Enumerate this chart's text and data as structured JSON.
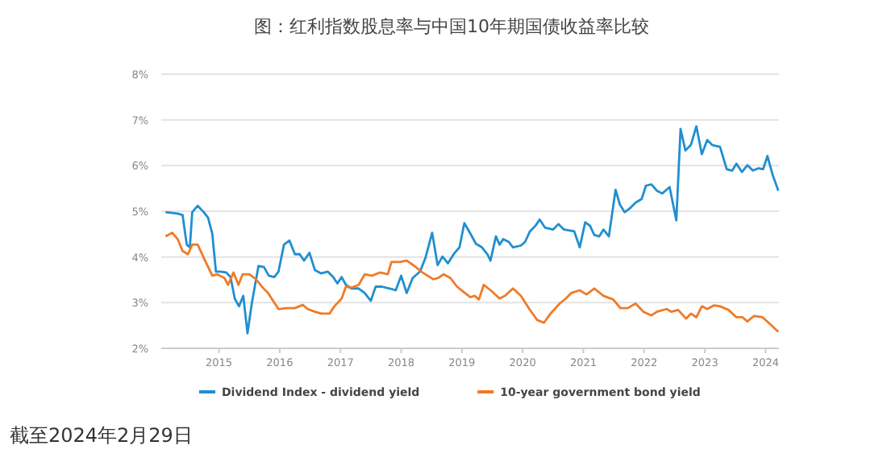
{
  "chart_data": {
    "type": "line",
    "title": "图：红利指数股息率与中国10年期国债收益率比较",
    "annotations": [
      "截至2024年2月29日"
    ],
    "xlim": [
      2014.05,
      2024.22
    ],
    "xticks": [
      2015,
      2016,
      2017,
      2018,
      2019,
      2020,
      2021,
      2022,
      2023,
      2024
    ],
    "ylim": [
      2,
      8
    ],
    "yticks": [
      {
        "value": 2,
        "label": "2%"
      },
      {
        "value": 3,
        "label": "3%"
      },
      {
        "value": 4,
        "label": "4%"
      },
      {
        "value": 5,
        "label": "5%"
      },
      {
        "value": 6,
        "label": "6%"
      },
      {
        "value": 7,
        "label": "7%"
      },
      {
        "value": 8,
        "label": "8%"
      }
    ],
    "grid": "y",
    "legend": "bottom",
    "line_style": "solid",
    "marker": "none",
    "series": [
      {
        "name": "Dividend Index - dividend yield",
        "color": "#1f8fd0",
        "x": [
          2014.12,
          2014.32,
          2014.4,
          2014.47,
          2014.52,
          2014.56,
          2014.65,
          2014.75,
          2014.82,
          2014.89,
          2014.95,
          2015.02,
          2015.12,
          2015.19,
          2015.26,
          2015.33,
          2015.4,
          2015.47,
          2015.54,
          2015.65,
          2015.74,
          2015.82,
          2015.91,
          2015.98,
          2016.07,
          2016.16,
          2016.25,
          2016.33,
          2016.4,
          2016.49,
          2016.58,
          2016.68,
          2016.79,
          2016.88,
          2016.95,
          2017.02,
          2017.09,
          2017.18,
          2017.3,
          2017.4,
          2017.5,
          2017.58,
          2017.68,
          2017.81,
          2017.91,
          2018.0,
          2018.09,
          2018.19,
          2018.31,
          2018.4,
          2018.51,
          2018.6,
          2018.68,
          2018.77,
          2018.88,
          2018.96,
          2019.04,
          2019.14,
          2019.23,
          2019.33,
          2019.42,
          2019.47,
          2019.56,
          2019.62,
          2019.68,
          2019.77,
          2019.84,
          2019.97,
          2020.04,
          2020.12,
          2020.21,
          2020.28,
          2020.37,
          2020.5,
          2020.59,
          2020.68,
          2020.85,
          2020.94,
          2021.03,
          2021.11,
          2021.18,
          2021.26,
          2021.33,
          2021.42,
          2021.53,
          2021.6,
          2021.68,
          2021.77,
          2021.86,
          2021.96,
          2022.03,
          2022.12,
          2022.21,
          2022.3,
          2022.42,
          2022.53,
          2022.6,
          2022.68,
          2022.77,
          2022.86,
          2022.95,
          2023.04,
          2023.12,
          2023.25,
          2023.36,
          2023.45,
          2023.52,
          2023.61,
          2023.7,
          2023.79,
          2023.88,
          2023.96,
          2024.03,
          2024.12,
          2024.21
        ],
        "values": [
          4.98,
          4.95,
          4.92,
          4.27,
          4.21,
          4.98,
          5.12,
          4.98,
          4.86,
          4.51,
          3.68,
          3.68,
          3.66,
          3.56,
          3.09,
          2.92,
          3.15,
          2.33,
          2.98,
          3.8,
          3.78,
          3.59,
          3.56,
          3.68,
          4.27,
          4.36,
          4.06,
          4.06,
          3.92,
          4.09,
          3.71,
          3.64,
          3.68,
          3.56,
          3.42,
          3.56,
          3.39,
          3.31,
          3.31,
          3.21,
          3.04,
          3.35,
          3.35,
          3.31,
          3.27,
          3.59,
          3.21,
          3.54,
          3.68,
          3.98,
          4.53,
          3.82,
          4.01,
          3.86,
          4.09,
          4.21,
          4.74,
          4.51,
          4.29,
          4.21,
          4.06,
          3.92,
          4.45,
          4.27,
          4.39,
          4.33,
          4.21,
          4.25,
          4.33,
          4.56,
          4.68,
          4.82,
          4.64,
          4.6,
          4.72,
          4.6,
          4.56,
          4.21,
          4.76,
          4.68,
          4.48,
          4.45,
          4.6,
          4.45,
          5.47,
          5.15,
          4.98,
          5.07,
          5.19,
          5.27,
          5.56,
          5.59,
          5.45,
          5.39,
          5.53,
          4.8,
          6.8,
          6.33,
          6.45,
          6.86,
          6.25,
          6.56,
          6.45,
          6.41,
          5.92,
          5.89,
          6.04,
          5.86,
          6.01,
          5.89,
          5.94,
          5.92,
          6.21,
          5.78,
          5.45
        ]
      },
      {
        "name": "10-year government bond yield",
        "color": "#f07a26",
        "x": [
          2014.12,
          2014.23,
          2014.32,
          2014.4,
          2014.49,
          2014.56,
          2014.65,
          2014.75,
          2014.89,
          2014.97,
          2015.09,
          2015.15,
          2015.24,
          2015.32,
          2015.39,
          2015.5,
          2015.61,
          2015.72,
          2015.81,
          2015.89,
          2015.98,
          2016.11,
          2016.25,
          2016.38,
          2016.46,
          2016.58,
          2016.68,
          2016.82,
          2016.9,
          2017.02,
          2017.09,
          2017.19,
          2017.3,
          2017.4,
          2017.52,
          2017.65,
          2017.78,
          2017.84,
          2017.98,
          2018.09,
          2018.22,
          2018.35,
          2018.53,
          2018.61,
          2018.7,
          2018.81,
          2018.92,
          2019.05,
          2019.14,
          2019.21,
          2019.28,
          2019.36,
          2019.5,
          2019.62,
          2019.71,
          2019.84,
          2019.97,
          2020.11,
          2020.24,
          2020.35,
          2020.46,
          2020.61,
          2020.71,
          2020.8,
          2020.94,
          2021.05,
          2021.18,
          2021.33,
          2021.49,
          2021.61,
          2021.73,
          2021.86,
          2021.99,
          2022.12,
          2022.21,
          2022.37,
          2022.45,
          2022.56,
          2022.69,
          2022.77,
          2022.86,
          2022.95,
          2023.04,
          2023.15,
          2023.25,
          2023.39,
          2023.52,
          2023.62,
          2023.7,
          2023.81,
          2023.95,
          2024.05,
          2024.21
        ],
        "values": [
          4.45,
          4.53,
          4.39,
          4.13,
          4.06,
          4.27,
          4.27,
          3.98,
          3.59,
          3.62,
          3.54,
          3.39,
          3.66,
          3.39,
          3.62,
          3.62,
          3.51,
          3.33,
          3.21,
          3.04,
          2.86,
          2.88,
          2.88,
          2.95,
          2.86,
          2.8,
          2.76,
          2.76,
          2.92,
          3.09,
          3.35,
          3.33,
          3.39,
          3.62,
          3.59,
          3.66,
          3.62,
          3.89,
          3.89,
          3.92,
          3.8,
          3.66,
          3.51,
          3.54,
          3.62,
          3.54,
          3.35,
          3.21,
          3.12,
          3.15,
          3.07,
          3.39,
          3.24,
          3.09,
          3.15,
          3.31,
          3.15,
          2.86,
          2.62,
          2.56,
          2.76,
          2.98,
          3.09,
          3.21,
          3.27,
          3.18,
          3.31,
          3.15,
          3.07,
          2.88,
          2.88,
          2.98,
          2.8,
          2.72,
          2.8,
          2.86,
          2.8,
          2.84,
          2.65,
          2.76,
          2.68,
          2.92,
          2.86,
          2.94,
          2.92,
          2.84,
          2.68,
          2.68,
          2.59,
          2.71,
          2.68,
          2.56,
          2.36
        ]
      }
    ]
  }
}
